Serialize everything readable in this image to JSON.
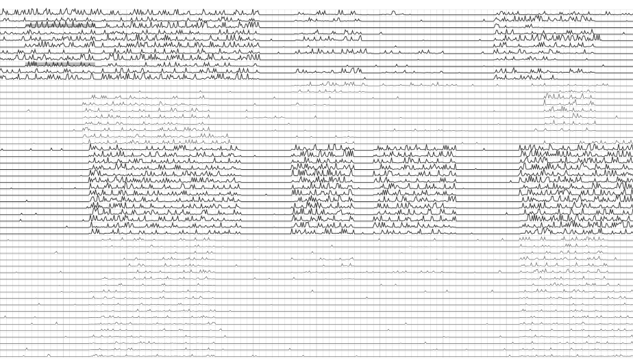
{
  "chart_data": {
    "type": "line",
    "title": "",
    "xlabel": "",
    "ylabel": "",
    "grid": true,
    "legend": "none",
    "colors": {
      "background": "#ffffff",
      "grid": "#d6d6d6",
      "trace": "#2e2e2e",
      "trace_light": "#6a6a6a",
      "band": "#8a8a8a"
    },
    "xlim": [
      0,
      1000
    ],
    "x_active_segments": [
      [
        0,
        1000
      ]
    ],
    "track_count": 54,
    "tracks": [
      {
        "base": 1.0,
        "activity": [
          [
            0,
            160,
            0.9
          ],
          [
            160,
            410,
            0.8
          ],
          [
            465,
            570,
            0.7
          ],
          [
            600,
            640,
            0.6
          ],
          [
            780,
            1000,
            0.5
          ]
        ]
      },
      {
        "base": 1.0,
        "activity": [
          [
            0,
            150,
            0.5
          ],
          [
            160,
            410,
            0.6
          ],
          [
            465,
            570,
            0.5
          ],
          [
            780,
            940,
            0.8
          ]
        ]
      },
      {
        "base": 1.0,
        "activity": [
          [
            40,
            150,
            0.9
          ],
          [
            160,
            410,
            0.9
          ],
          [
            780,
            860,
            0.6
          ]
        ]
      },
      {
        "base": 1.0,
        "activity": [
          [
            0,
            150,
            0.6
          ],
          [
            160,
            410,
            0.7
          ],
          [
            465,
            570,
            0.6
          ],
          [
            780,
            940,
            0.7
          ]
        ]
      },
      {
        "base": 1.0,
        "activity": [
          [
            0,
            150,
            0.7
          ],
          [
            160,
            410,
            0.9
          ],
          [
            465,
            570,
            0.7
          ],
          [
            780,
            950,
            0.9
          ]
        ]
      },
      {
        "base": 1.0,
        "activity": [
          [
            40,
            150,
            0.9
          ],
          [
            160,
            410,
            0.8
          ],
          [
            780,
            940,
            0.7
          ]
        ]
      },
      {
        "base": 1.0,
        "activity": [
          [
            0,
            150,
            0.6
          ],
          [
            160,
            410,
            0.7
          ],
          [
            465,
            590,
            0.7
          ],
          [
            600,
            700,
            0.5
          ],
          [
            780,
            940,
            0.6
          ]
        ]
      },
      {
        "base": 1.0,
        "activity": [
          [
            0,
            150,
            0.8
          ],
          [
            160,
            410,
            0.9
          ],
          [
            780,
            880,
            0.6
          ]
        ]
      },
      {
        "base": 1.0,
        "activity": [
          [
            40,
            150,
            0.8
          ],
          [
            160,
            410,
            0.6
          ]
        ]
      },
      {
        "base": 1.0,
        "activity": [
          [
            0,
            150,
            0.6
          ],
          [
            160,
            410,
            0.7
          ],
          [
            465,
            570,
            0.7
          ],
          [
            600,
            700,
            0.4
          ],
          [
            780,
            940,
            0.7
          ]
        ]
      },
      {
        "base": 1.0,
        "activity": [
          [
            0,
            150,
            0.8
          ],
          [
            160,
            410,
            0.9
          ],
          [
            780,
            880,
            0.6
          ]
        ]
      },
      {
        "base": 0.5,
        "activity": [
          [
            460,
            580,
            0.6
          ],
          [
            600,
            720,
            0.5
          ],
          [
            840,
            960,
            0.4
          ]
        ]
      },
      {
        "base": 0.5,
        "activity": [
          [
            460,
            580,
            0.4
          ],
          [
            860,
            940,
            0.3
          ]
        ]
      },
      {
        "base": 0.4,
        "activity": [
          [
            130,
            330,
            0.5
          ],
          [
            860,
            940,
            0.7
          ]
        ]
      },
      {
        "base": 0.4,
        "activity": [
          [
            130,
            330,
            0.5
          ],
          [
            460,
            520,
            0.3
          ],
          [
            860,
            940,
            0.8
          ]
        ]
      },
      {
        "base": 0.4,
        "activity": [
          [
            130,
            330,
            0.5
          ],
          [
            860,
            940,
            0.8
          ]
        ]
      },
      {
        "base": 0.4,
        "activity": [
          [
            130,
            330,
            0.5
          ],
          [
            400,
            450,
            0.3
          ],
          [
            860,
            940,
            0.7
          ]
        ]
      },
      {
        "base": 0.4,
        "activity": [
          [
            130,
            330,
            0.4
          ],
          [
            860,
            940,
            0.6
          ]
        ]
      },
      {
        "base": 0.4,
        "activity": [
          [
            130,
            330,
            0.5
          ],
          [
            540,
            560,
            0.4
          ],
          [
            600,
            740,
            0.3
          ],
          [
            860,
            940,
            0.5
          ]
        ]
      },
      {
        "base": 0.3,
        "activity": [
          [
            130,
            360,
            0.5
          ],
          [
            540,
            560,
            0.3
          ]
        ]
      },
      {
        "base": 0.3,
        "activity": [
          [
            130,
            370,
            0.6
          ],
          [
            540,
            560,
            0.4
          ],
          [
            860,
            1000,
            0.5
          ]
        ]
      },
      {
        "base": 0.6,
        "activity": [
          [
            140,
            200,
            0.9
          ],
          [
            200,
            380,
            0.7
          ],
          [
            460,
            560,
            0.9
          ],
          [
            590,
            720,
            0.8
          ],
          [
            820,
            1000,
            0.9
          ]
        ]
      },
      {
        "base": 0.6,
        "activity": [
          [
            140,
            200,
            0.9
          ],
          [
            200,
            380,
            0.7
          ],
          [
            460,
            560,
            0.9
          ],
          [
            590,
            720,
            0.8
          ],
          [
            820,
            1000,
            0.9
          ]
        ]
      },
      {
        "base": 0.6,
        "activity": [
          [
            140,
            200,
            0.9
          ],
          [
            200,
            380,
            0.7
          ],
          [
            460,
            560,
            0.9
          ],
          [
            590,
            720,
            0.8
          ],
          [
            820,
            1000,
            0.9
          ]
        ]
      },
      {
        "base": 0.6,
        "activity": [
          [
            140,
            200,
            0.9
          ],
          [
            200,
            380,
            0.7
          ],
          [
            460,
            560,
            0.9
          ],
          [
            590,
            720,
            0.8
          ],
          [
            820,
            1000,
            0.9
          ]
        ]
      },
      {
        "base": 0.6,
        "activity": [
          [
            140,
            200,
            0.9
          ],
          [
            200,
            380,
            0.7
          ],
          [
            460,
            560,
            0.9
          ],
          [
            590,
            720,
            0.8
          ],
          [
            820,
            1000,
            0.9
          ]
        ]
      },
      {
        "base": 0.6,
        "activity": [
          [
            140,
            200,
            0.9
          ],
          [
            200,
            380,
            0.7
          ],
          [
            460,
            560,
            0.9
          ],
          [
            590,
            720,
            0.8
          ],
          [
            820,
            1000,
            0.9
          ]
        ]
      },
      {
        "base": 0.6,
        "activity": [
          [
            140,
            200,
            0.9
          ],
          [
            200,
            380,
            0.7
          ],
          [
            460,
            560,
            0.9
          ],
          [
            590,
            720,
            0.8
          ],
          [
            820,
            1000,
            0.9
          ]
        ]
      },
      {
        "base": 0.6,
        "activity": [
          [
            140,
            200,
            0.9
          ],
          [
            200,
            380,
            0.7
          ],
          [
            460,
            560,
            0.9
          ],
          [
            590,
            720,
            0.8
          ],
          [
            820,
            1000,
            0.9
          ]
        ]
      },
      {
        "base": 0.6,
        "activity": [
          [
            140,
            200,
            0.9
          ],
          [
            200,
            380,
            0.7
          ],
          [
            460,
            560,
            0.9
          ],
          [
            590,
            720,
            0.8
          ],
          [
            820,
            1000,
            0.9
          ]
        ]
      },
      {
        "base": 0.6,
        "activity": [
          [
            140,
            200,
            0.9
          ],
          [
            200,
            380,
            0.7
          ],
          [
            460,
            560,
            0.9
          ],
          [
            590,
            720,
            0.8
          ],
          [
            820,
            1000,
            0.9
          ]
        ]
      },
      {
        "base": 0.6,
        "activity": [
          [
            140,
            200,
            0.9
          ],
          [
            200,
            380,
            0.7
          ],
          [
            460,
            560,
            0.9
          ],
          [
            590,
            720,
            0.8
          ],
          [
            820,
            1000,
            0.9
          ]
        ]
      },
      {
        "base": 0.6,
        "activity": [
          [
            140,
            200,
            0.9
          ],
          [
            200,
            380,
            0.7
          ],
          [
            460,
            560,
            0.9
          ],
          [
            590,
            720,
            0.8
          ],
          [
            820,
            1000,
            0.9
          ]
        ]
      },
      {
        "base": 0.6,
        "activity": [
          [
            140,
            200,
            0.9
          ],
          [
            200,
            380,
            0.7
          ],
          [
            460,
            560,
            0.9
          ],
          [
            590,
            720,
            0.8
          ],
          [
            820,
            1000,
            0.9
          ]
        ]
      },
      {
        "base": 0.6,
        "activity": [
          [
            140,
            200,
            0.8
          ],
          [
            200,
            380,
            0.6
          ],
          [
            460,
            560,
            0.8
          ],
          [
            590,
            720,
            0.7
          ],
          [
            820,
            1000,
            0.8
          ]
        ]
      },
      {
        "base": 0.5,
        "activity": [
          [
            160,
            340,
            0.4
          ],
          [
            820,
            960,
            0.5
          ]
        ]
      },
      {
        "base": 0.5,
        "activity": [
          [
            160,
            340,
            0.3
          ],
          [
            640,
            720,
            0.2
          ],
          [
            820,
            960,
            0.4
          ]
        ]
      },
      {
        "base": 0.4,
        "activity": [
          [
            200,
            340,
            0.3
          ],
          [
            820,
            960,
            0.4
          ]
        ]
      },
      {
        "base": 0.4,
        "activity": [
          [
            200,
            340,
            0.4
          ],
          [
            460,
            560,
            0.3
          ],
          [
            820,
            960,
            0.5
          ]
        ]
      },
      {
        "base": 0.4,
        "activity": [
          [
            200,
            340,
            0.4
          ],
          [
            540,
            560,
            0.4
          ],
          [
            820,
            960,
            0.5
          ]
        ]
      },
      {
        "base": 0.4,
        "activity": [
          [
            200,
            340,
            0.4
          ],
          [
            460,
            720,
            0.3
          ],
          [
            820,
            960,
            0.5
          ]
        ]
      },
      {
        "base": 0.4,
        "activity": [
          [
            160,
            340,
            0.4
          ],
          [
            540,
            560,
            0.4
          ],
          [
            820,
            960,
            0.4
          ]
        ]
      },
      {
        "base": 0.3,
        "activity": [
          [
            160,
            340,
            0.3
          ],
          [
            820,
            960,
            0.4
          ]
        ]
      },
      {
        "base": 0.3,
        "activity": [
          [
            140,
            340,
            0.3
          ],
          [
            820,
            1000,
            0.4
          ]
        ]
      },
      {
        "base": 0.3,
        "activity": [
          [
            140,
            340,
            0.3
          ],
          [
            820,
            1000,
            0.3
          ]
        ]
      },
      {
        "base": 0.3,
        "activity": [
          [
            140,
            340,
            0.3
          ],
          [
            820,
            1000,
            0.3
          ]
        ]
      },
      {
        "base": 0.3,
        "activity": [
          [
            140,
            340,
            0.3
          ],
          [
            820,
            1000,
            0.3
          ]
        ]
      },
      {
        "base": 0.3,
        "activity": [
          [
            140,
            340,
            0.3
          ],
          [
            820,
            1000,
            0.3
          ]
        ]
      },
      {
        "base": 0.3,
        "activity": [
          [
            140,
            340,
            0.3
          ],
          [
            820,
            1000,
            0.3
          ]
        ]
      },
      {
        "base": 0.3,
        "activity": [
          [
            140,
            340,
            0.3
          ],
          [
            820,
            1000,
            0.3
          ]
        ]
      },
      {
        "base": 0.3,
        "activity": [
          [
            140,
            340,
            0.3
          ],
          [
            820,
            1000,
            0.3
          ]
        ]
      },
      {
        "base": 0.3,
        "activity": [
          [
            140,
            340,
            0.3
          ],
          [
            820,
            1000,
            0.3
          ]
        ]
      },
      {
        "base": 0.3,
        "activity": [
          [
            140,
            340,
            0.3
          ],
          [
            820,
            1000,
            0.3
          ]
        ]
      },
      {
        "base": 0.3,
        "activity": [
          [
            140,
            340,
            0.3
          ],
          [
            820,
            1000,
            0.3
          ]
        ]
      }
    ],
    "bands": [
      {
        "track": 2,
        "x": [
          40,
          150
        ],
        "shade": 0.55
      },
      {
        "track": 8,
        "x": [
          40,
          150
        ],
        "shade": 0.6
      }
    ]
  }
}
